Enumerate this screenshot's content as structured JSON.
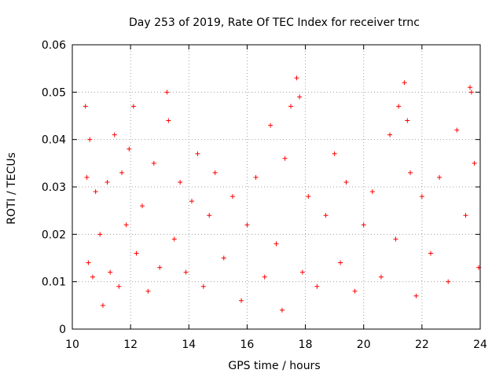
{
  "chart_data": {
    "type": "scatter",
    "title": "Day 253 of 2019, Rate Of TEC Index for receiver trnc",
    "xlabel": "GPS time / hours",
    "ylabel": "ROTI / TECUs",
    "xlim": [
      10,
      24
    ],
    "ylim": [
      0,
      0.06
    ],
    "x_ticks": [
      "10",
      "12",
      "14",
      "16",
      "18",
      "20",
      "22",
      "24"
    ],
    "y_ticks": [
      "0",
      "0.01",
      "0.02",
      "0.03",
      "0.04",
      "0.05",
      "0.06"
    ],
    "grid": true,
    "marker": "plus",
    "color": "#ff0000",
    "series": [
      {
        "x": [
          10.45,
          10.5,
          10.55,
          10.6,
          10.7,
          10.8,
          10.95,
          11.05,
          11.2,
          11.3,
          11.45,
          11.6,
          11.7,
          11.85,
          11.95,
          12.1,
          12.2,
          12.4,
          12.6,
          12.8,
          13.0,
          13.25,
          13.3,
          13.5,
          13.7,
          13.9,
          14.1,
          14.3,
          14.5,
          14.7,
          14.9,
          15.2,
          15.5,
          15.8,
          16.0,
          16.3,
          16.6,
          16.8,
          17.0,
          17.2,
          17.3,
          17.5,
          17.7,
          17.8,
          17.9,
          18.1,
          18.4,
          18.7,
          19.0,
          19.2,
          19.4,
          19.7,
          20.0,
          20.3,
          20.6,
          20.9,
          21.1,
          21.2,
          21.4,
          21.5,
          21.6,
          21.8,
          22.0,
          22.3,
          22.6,
          22.9,
          23.2,
          23.5,
          23.65,
          23.7,
          23.8,
          23.95
        ],
        "y": [
          0.047,
          0.032,
          0.014,
          0.04,
          0.011,
          0.029,
          0.02,
          0.005,
          0.031,
          0.012,
          0.041,
          0.009,
          0.033,
          0.022,
          0.038,
          0.047,
          0.016,
          0.026,
          0.008,
          0.035,
          0.013,
          0.05,
          0.044,
          0.019,
          0.031,
          0.012,
          0.027,
          0.037,
          0.009,
          0.024,
          0.033,
          0.015,
          0.028,
          0.006,
          0.022,
          0.032,
          0.011,
          0.043,
          0.018,
          0.004,
          0.036,
          0.047,
          0.053,
          0.049,
          0.012,
          0.028,
          0.009,
          0.024,
          0.037,
          0.014,
          0.031,
          0.008,
          0.022,
          0.029,
          0.011,
          0.041,
          0.019,
          0.047,
          0.052,
          0.044,
          0.033,
          0.007,
          0.028,
          0.016,
          0.032,
          0.01,
          0.042,
          0.024,
          0.051,
          0.05,
          0.035,
          0.013
        ]
      }
    ]
  }
}
